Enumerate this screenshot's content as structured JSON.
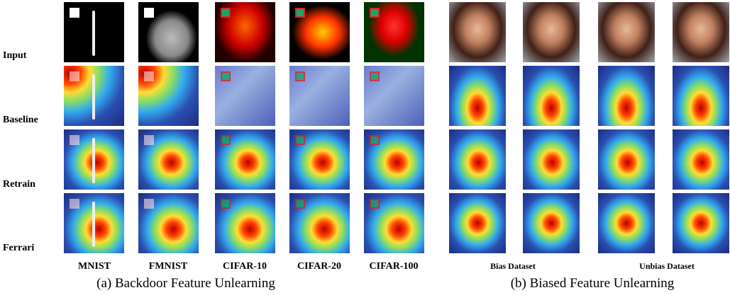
{
  "left": {
    "row_labels": [
      "Input",
      "Baseline",
      "Retrain",
      "Ferrari"
    ],
    "column_labels": [
      "MNIST",
      "FMNIST",
      "CIFAR-10",
      "CIFAR-20",
      "CIFAR-100"
    ],
    "caption": "(a) Backdoor Feature Unlearning"
  },
  "right": {
    "group_labels": [
      "Bias Dataset",
      "Unbias Dataset"
    ],
    "caption": "(b) Biased Feature Unlearning"
  }
}
